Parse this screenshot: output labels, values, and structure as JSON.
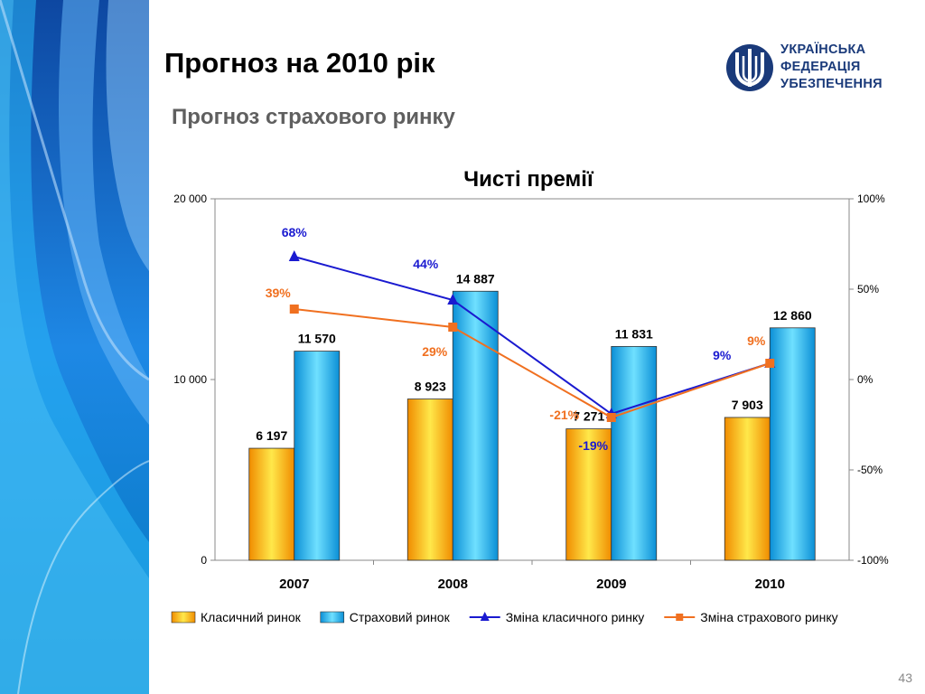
{
  "slide": {
    "title": "Прогноз на 2010 рік",
    "subtitle": "Прогноз страхового ринку",
    "page_number": "43"
  },
  "logo": {
    "lines": [
      "УКРАЇНСЬКА",
      "ФЕДЕРАЦІЯ",
      "УБЕЗПЕЧЕННЯ"
    ],
    "icon": "trident-emblem-icon"
  },
  "colors": {
    "classic_bar": "#f5c400",
    "insurance_bar": "#18b4ea",
    "classic_line": "#1a1ad0",
    "insurance_line": "#f07020",
    "deco_blue": "#1565c0"
  },
  "chart_data": {
    "type": "bar",
    "title": "Чисті премії",
    "categories": [
      "2007",
      "2008",
      "2009",
      "2010"
    ],
    "ylim": [
      0,
      20000
    ],
    "y_ticks": [
      "0",
      "10 000",
      "20 000"
    ],
    "y2lim": [
      -100,
      100
    ],
    "y2_ticks": [
      "-100%",
      "-50%",
      "0%",
      "50%",
      "100%"
    ],
    "grid": false,
    "legend_position": "bottom",
    "series": [
      {
        "name": "Класичний ринок",
        "kind": "bar",
        "values": [
          6197,
          8923,
          7271,
          7903
        ],
        "labels": [
          "6 197",
          "8 923",
          "7 271",
          "7 903"
        ]
      },
      {
        "name": "Страховий ринок",
        "kind": "bar",
        "values": [
          11570,
          14887,
          11831,
          12860
        ],
        "labels": [
          "11 570",
          "14 887",
          "11 831",
          "12 860"
        ]
      },
      {
        "name": "Зміна класичного ринку",
        "kind": "line",
        "axis": "right",
        "values": [
          68,
          44,
          -19,
          9
        ],
        "labels": [
          "68%",
          "44%",
          "-19%",
          "9%"
        ]
      },
      {
        "name": "Зміна страхового ринку",
        "kind": "line",
        "axis": "right",
        "values": [
          39,
          29,
          -21,
          9
        ],
        "labels": [
          "39%",
          "29%",
          "-21%",
          "9%"
        ]
      }
    ]
  }
}
